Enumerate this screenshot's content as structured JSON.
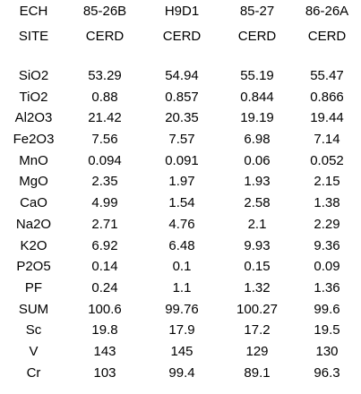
{
  "header": {
    "rows": [
      [
        "ECH",
        "85-26B",
        "H9D1",
        "85-27",
        "86-26A"
      ],
      [
        "SITE",
        "CERD",
        "CERD",
        "CERD",
        "CERD"
      ]
    ]
  },
  "rows": [
    [
      "SiO2",
      "53.29",
      "54.94",
      "55.19",
      "55.47"
    ],
    [
      "TiO2",
      "0.88",
      "0.857",
      "0.844",
      "0.866"
    ],
    [
      "Al2O3",
      "21.42",
      "20.35",
      "19.19",
      "19.44"
    ],
    [
      "Fe2O3",
      "7.56",
      "7.57",
      "6.98",
      "7.14"
    ],
    [
      "MnO",
      "0.094",
      "0.091",
      "0.06",
      "0.052"
    ],
    [
      "MgO",
      "2.35",
      "1.97",
      "1.93",
      "2.15"
    ],
    [
      "CaO",
      "4.99",
      "1.54",
      "2.58",
      "1.38"
    ],
    [
      "Na2O",
      "2.71",
      "4.76",
      "2.1",
      "2.29"
    ],
    [
      "K2O",
      "6.92",
      "6.48",
      "9.93",
      "9.36"
    ],
    [
      "P2O5",
      "0.14",
      "0.1",
      "0.15",
      "0.09"
    ],
    [
      "PF",
      "0.24",
      "1.1",
      "1.32",
      "1.36"
    ],
    [
      "SUM",
      "100.6",
      "99.76",
      "100.27",
      "99.6"
    ],
    [
      "Sc",
      "19.8",
      "17.9",
      "17.2",
      "19.5"
    ],
    [
      "V",
      "143",
      "145",
      "129",
      "130"
    ],
    [
      "Cr",
      "103",
      "99.4",
      "89.1",
      "96.3"
    ]
  ]
}
